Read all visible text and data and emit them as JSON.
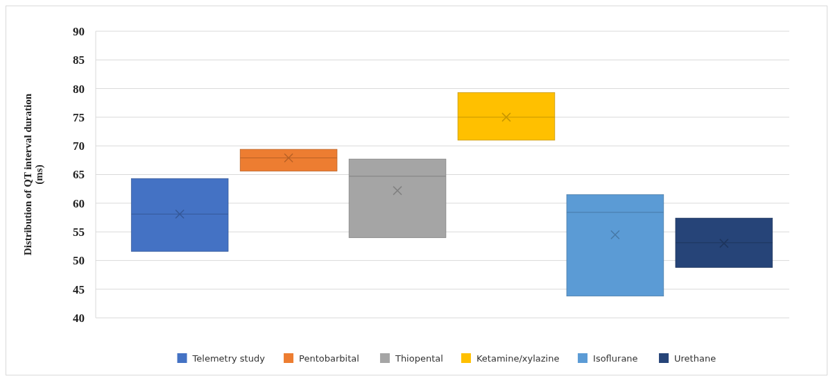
{
  "chart_data": {
    "type": "box",
    "ylabel": "Distribution of QT interval duration (ms)",
    "categories": [
      null
    ],
    "ylim": [
      40,
      90
    ],
    "yticks": [
      40,
      45,
      50,
      55,
      60,
      65,
      70,
      75,
      80,
      85,
      90
    ],
    "grid": "y",
    "legend": "bottom",
    "series": [
      {
        "name": "Telemetry study",
        "color": "#4472c4",
        "boxes": [
          {
            "low": 51.6,
            "q1": 51.6,
            "median": 58.1,
            "q3": 64.3,
            "high": 64.3,
            "mean": 58.1
          }
        ]
      },
      {
        "name": "Pentobarbital",
        "color": "#ed7d31",
        "boxes": [
          {
            "low": 65.6,
            "q1": 65.6,
            "median": 67.9,
            "q3": 69.4,
            "high": 69.4,
            "mean": 67.9
          }
        ]
      },
      {
        "name": "Thiopental",
        "color": "#a5a5a5",
        "boxes": [
          {
            "low": 54,
            "q1": 54,
            "median": 64.7,
            "q3": 67.7,
            "high": 67.7,
            "mean": 62.2
          }
        ]
      },
      {
        "name": "Ketamine/xylazine",
        "color": "#ffc000",
        "boxes": [
          {
            "low": 71,
            "q1": 71,
            "median": 75,
            "q3": 79.3,
            "high": 79.3,
            "mean": 75
          }
        ]
      },
      {
        "name": "Isoflurane",
        "color": "#5b9bd5",
        "boxes": [
          {
            "low": 43.8,
            "q1": 43.8,
            "median": 58.4,
            "q3": 61.5,
            "high": 61.5,
            "mean": 54.5
          }
        ]
      },
      {
        "name": "Urethane",
        "color": "#264478",
        "boxes": [
          {
            "low": 48.8,
            "q1": 48.8,
            "median": 53.1,
            "q3": 57.4,
            "high": 57.4,
            "mean": 53
          }
        ]
      }
    ]
  }
}
